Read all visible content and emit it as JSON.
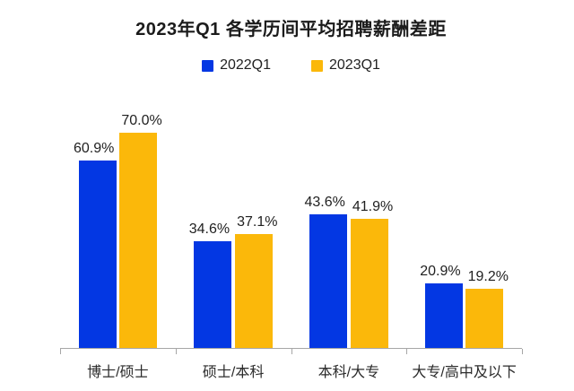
{
  "chart_data": {
    "type": "bar",
    "title": "2023年Q1 各学历间平均招聘薪酬差距",
    "categories": [
      "博士/硕士",
      "硕士/本科",
      "本科/大专",
      "大专/高中及以下"
    ],
    "series": [
      {
        "name": "2022Q1",
        "color": "#0337e3",
        "values": [
          60.9,
          34.6,
          43.6,
          20.9
        ]
      },
      {
        "name": "2023Q1",
        "color": "#fbb80a",
        "values": [
          70.0,
          37.1,
          41.9,
          19.2
        ]
      }
    ],
    "value_suffix": "%",
    "value_decimals": 1,
    "ylim": [
      0,
      77
    ],
    "grid": false,
    "legend_position": "top",
    "axis_color": "#a6a6a6"
  }
}
